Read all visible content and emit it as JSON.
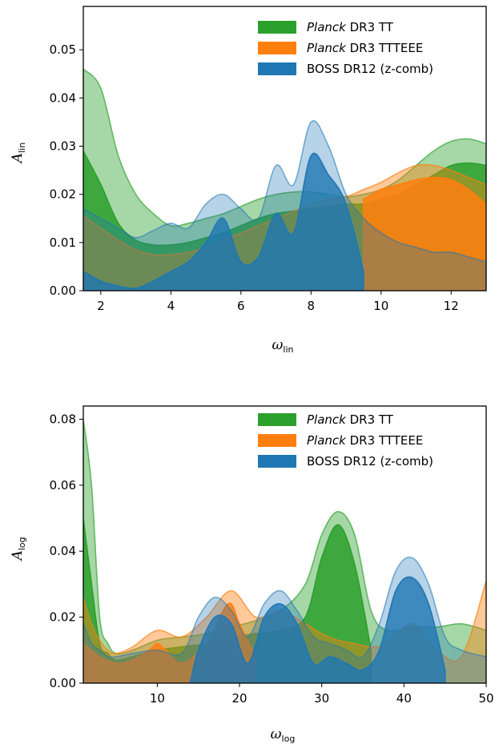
{
  "chart_data": [
    {
      "type": "area",
      "xlabel_symbol": "ω",
      "xlabel_sub": "lin",
      "ylabel_symbol": "A",
      "ylabel_sub": "lin",
      "xlim": [
        1.5,
        13.0
      ],
      "ylim": [
        0.0,
        0.059
      ],
      "xticks": [
        2,
        4,
        6,
        8,
        10,
        12
      ],
      "xtick_labels": [
        "2",
        "4",
        "6",
        "8",
        "10",
        "12"
      ],
      "yticks": [
        0.0,
        0.01,
        0.02,
        0.03,
        0.04,
        0.05
      ],
      "ytick_labels": [
        "0.00",
        "0.01",
        "0.02",
        "0.03",
        "0.04",
        "0.05"
      ],
      "legend_position": "top-right",
      "legend": [
        {
          "italic": "Planck",
          "rest": " DR3 TT",
          "color": "#2ca02c"
        },
        {
          "italic": "Planck",
          "rest": " DR3 TTTEEE",
          "color": "#ff7f0e"
        },
        {
          "italic": "",
          "rest": "BOSS DR12 (z-comb)",
          "color": "#1f77b4"
        }
      ],
      "series": [
        {
          "name": "Planck DR3 TT",
          "color": "#2ca02c",
          "contour": "outer",
          "opacity": 0.42,
          "x": [
            1.5,
            2.0,
            2.5,
            3.0,
            3.5,
            4.0,
            4.5,
            5.0,
            5.5,
            6.0,
            6.5,
            7.0,
            7.5,
            8.0,
            8.5,
            9.0,
            9.5,
            10.0,
            10.5,
            11.0,
            11.5,
            12.0,
            12.5,
            13.0
          ],
          "y": [
            0.046,
            0.042,
            0.028,
            0.02,
            0.016,
            0.0135,
            0.014,
            0.015,
            0.016,
            0.0175,
            0.019,
            0.02,
            0.0205,
            0.0205,
            0.02,
            0.0195,
            0.02,
            0.021,
            0.023,
            0.026,
            0.029,
            0.031,
            0.0315,
            0.0305
          ]
        },
        {
          "name": "Planck DR3 TT",
          "color": "#2ca02c",
          "contour": "inner",
          "opacity": 0.85,
          "x": [
            1.5,
            2.0,
            2.5,
            3.0,
            3.5,
            4.0,
            4.5,
            5.0,
            5.5,
            6.0,
            6.5,
            7.0,
            7.5,
            8.0,
            8.5,
            9.0,
            9.5,
            10.0,
            10.5,
            11.0,
            11.5,
            12.0,
            12.5,
            13.0
          ],
          "y": [
            0.029,
            0.022,
            0.014,
            0.0105,
            0.0095,
            0.0095,
            0.01,
            0.011,
            0.012,
            0.0135,
            0.015,
            0.016,
            0.0165,
            0.017,
            0.0175,
            0.018,
            0.018,
            0.019,
            0.02,
            0.022,
            0.024,
            0.026,
            0.0265,
            0.026
          ]
        },
        {
          "name": "Planck DR3 TTTEEE",
          "color": "#ff7f0e",
          "contour": "outer",
          "opacity": 0.42,
          "x": [
            1.5,
            2.0,
            2.5,
            3.0,
            3.5,
            4.0,
            4.5,
            5.0,
            5.5,
            6.0,
            6.5,
            7.0,
            7.5,
            8.0,
            8.5,
            9.0,
            9.5,
            10.0,
            10.5,
            11.0,
            11.5,
            12.0,
            12.5,
            13.0
          ],
          "y": [
            0.0155,
            0.013,
            0.0105,
            0.0085,
            0.0075,
            0.0075,
            0.008,
            0.009,
            0.0105,
            0.012,
            0.0135,
            0.015,
            0.0165,
            0.018,
            0.019,
            0.0195,
            0.021,
            0.0225,
            0.0245,
            0.026,
            0.026,
            0.025,
            0.0235,
            0.022
          ]
        },
        {
          "name": "Planck DR3 TTTEEE",
          "color": "#ff7f0e",
          "contour": "inner",
          "opacity": 0.85,
          "x": [
            9.5,
            10.0,
            10.5,
            11.0,
            11.5,
            12.0,
            12.5,
            13.0
          ],
          "y": [
            0.019,
            0.021,
            0.022,
            0.023,
            0.0235,
            0.023,
            0.021,
            0.018
          ]
        },
        {
          "name": "BOSS DR12 (z-comb)",
          "color": "#1f77b4",
          "contour": "outer",
          "opacity": 0.32,
          "x": [
            1.5,
            2.0,
            2.5,
            3.0,
            3.5,
            4.0,
            4.5,
            5.0,
            5.5,
            6.0,
            6.5,
            7.0,
            7.5,
            8.0,
            8.5,
            9.0,
            9.5,
            10.0,
            10.5,
            11.0,
            11.5,
            12.0,
            12.5,
            13.0
          ],
          "y": [
            0.017,
            0.015,
            0.013,
            0.011,
            0.0125,
            0.014,
            0.013,
            0.018,
            0.02,
            0.017,
            0.015,
            0.026,
            0.022,
            0.035,
            0.03,
            0.02,
            0.015,
            0.012,
            0.01,
            0.009,
            0.008,
            0.008,
            0.007,
            0.006
          ]
        },
        {
          "name": "BOSS DR12 (z-comb)",
          "color": "#1f77b4",
          "contour": "inner",
          "opacity": 0.8,
          "x": [
            1.5,
            2.0,
            2.5,
            3.0,
            3.5,
            4.0,
            4.5,
            5.0,
            5.5,
            6.0,
            6.5,
            7.0,
            7.5,
            8.0,
            8.5,
            9.0,
            9.5
          ],
          "y": [
            0.004,
            0.002,
            0.001,
            0.0005,
            0.002,
            0.004,
            0.006,
            0.01,
            0.015,
            0.006,
            0.007,
            0.016,
            0.012,
            0.028,
            0.024,
            0.018,
            0.004
          ]
        }
      ]
    },
    {
      "type": "area",
      "xlabel_symbol": "ω",
      "xlabel_sub": "log",
      "ylabel_symbol": "A",
      "ylabel_sub": "log",
      "xlim": [
        1.0,
        50.0
      ],
      "ylim": [
        0.0,
        0.084
      ],
      "xticks": [
        10,
        20,
        30,
        40,
        50
      ],
      "xtick_labels": [
        "10",
        "20",
        "30",
        "40",
        "50"
      ],
      "yticks": [
        0.0,
        0.02,
        0.04,
        0.06,
        0.08
      ],
      "ytick_labels": [
        "0.00",
        "0.02",
        "0.04",
        "0.06",
        "0.08"
      ],
      "legend_position": "top-right",
      "legend": [
        {
          "italic": "Planck",
          "rest": " DR3 TT",
          "color": "#2ca02c"
        },
        {
          "italic": "Planck",
          "rest": " DR3 TTTEEE",
          "color": "#ff7f0e"
        },
        {
          "italic": "",
          "rest": "BOSS DR12 (z-comb)",
          "color": "#1f77b4"
        }
      ],
      "series": [
        {
          "name": "Planck DR3 TT",
          "color": "#2ca02c",
          "contour": "outer",
          "opacity": 0.42,
          "x": [
            1,
            2,
            3,
            4,
            5,
            7,
            10,
            13,
            16,
            19,
            22,
            25,
            28,
            30,
            32,
            34,
            36,
            38,
            41,
            44,
            47,
            50
          ],
          "y": [
            0.08,
            0.06,
            0.02,
            0.012,
            0.009,
            0.01,
            0.013,
            0.014,
            0.015,
            0.017,
            0.019,
            0.022,
            0.03,
            0.045,
            0.052,
            0.045,
            0.022,
            0.016,
            0.017,
            0.017,
            0.018,
            0.016
          ]
        },
        {
          "name": "Planck DR3 TT",
          "color": "#2ca02c",
          "contour": "inner",
          "opacity": 0.85,
          "x": [
            1,
            2,
            3,
            4,
            5,
            7,
            10,
            13,
            16,
            19,
            22,
            25,
            28,
            30,
            32,
            34,
            36
          ],
          "y": [
            0.05,
            0.03,
            0.012,
            0.009,
            0.007,
            0.008,
            0.01,
            0.011,
            0.012,
            0.014,
            0.015,
            0.016,
            0.02,
            0.038,
            0.048,
            0.036,
            0.01
          ]
        },
        {
          "name": "Planck DR3 TTTEEE",
          "color": "#ff7f0e",
          "contour": "outer",
          "opacity": 0.42,
          "x": [
            1,
            2,
            3,
            4,
            5,
            7,
            10,
            13,
            16,
            19,
            22,
            25,
            28,
            30,
            32,
            34,
            36,
            38,
            41,
            44,
            47,
            50
          ],
          "y": [
            0.026,
            0.018,
            0.013,
            0.01,
            0.009,
            0.011,
            0.016,
            0.014,
            0.02,
            0.028,
            0.02,
            0.022,
            0.018,
            0.015,
            0.013,
            0.012,
            0.011,
            0.012,
            0.018,
            0.01,
            0.008,
            0.031
          ]
        },
        {
          "name": "Planck DR3 TTTEEE",
          "color": "#ff7f0e",
          "contour": "inner",
          "opacity": 0.85,
          "x": [
            1,
            3,
            5,
            7,
            9,
            10,
            11,
            13,
            16,
            18,
            19,
            20,
            22
          ],
          "y": [
            0.012,
            0.008,
            0.006,
            0.007,
            0.01,
            0.012,
            0.01,
            0.006,
            0.012,
            0.022,
            0.024,
            0.018,
            0.008
          ]
        },
        {
          "name": "BOSS DR12 (z-comb)",
          "color": "#1f77b4",
          "contour": "outer",
          "opacity": 0.32,
          "x": [
            1,
            2,
            3,
            4,
            5,
            7,
            10,
            13,
            15,
            17,
            19,
            21,
            23,
            25,
            27,
            29,
            31,
            33,
            35,
            37,
            39,
            41,
            43,
            45,
            47,
            50
          ],
          "y": [
            0.018,
            0.012,
            0.01,
            0.008,
            0.008,
            0.009,
            0.01,
            0.009,
            0.02,
            0.026,
            0.022,
            0.014,
            0.024,
            0.028,
            0.022,
            0.014,
            0.012,
            0.01,
            0.008,
            0.018,
            0.034,
            0.038,
            0.03,
            0.014,
            0.01,
            0.008
          ]
        },
        {
          "name": "BOSS DR12 (z-comb)",
          "color": "#1f77b4",
          "contour": "inner",
          "opacity": 0.8,
          "x": [
            14,
            15,
            17,
            19,
            21,
            23,
            25,
            27,
            29,
            31,
            33,
            35,
            37,
            39,
            41,
            43,
            45
          ],
          "y": [
            0.0,
            0.01,
            0.02,
            0.018,
            0.006,
            0.02,
            0.024,
            0.018,
            0.006,
            0.008,
            0.006,
            0.004,
            0.01,
            0.028,
            0.032,
            0.024,
            0.004
          ]
        }
      ]
    }
  ]
}
